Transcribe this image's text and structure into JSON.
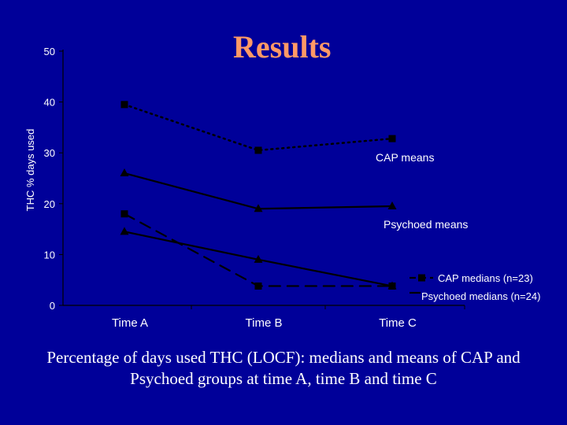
{
  "slide": {
    "title": "Results",
    "caption_line1": "Percentage of days used THC (LOCF): medians and means of CAP and",
    "caption_line2": "Psychoed groups at time A, time B and time C"
  },
  "colors": {
    "background": "#000099",
    "title": "#ff9966",
    "ink": "#000000",
    "text": "#ffffff"
  },
  "chart_data": {
    "type": "line",
    "title": "",
    "xlabel": "",
    "ylabel": "THC % days used",
    "categories": [
      "Time A",
      "Time B",
      "Time C"
    ],
    "ylim": [
      0,
      50
    ],
    "yticks": [
      0,
      10,
      20,
      30,
      40,
      50
    ],
    "grid": false,
    "series": [
      {
        "name": "CAP means",
        "values": [
          39.5,
          30.5,
          32.8
        ],
        "marker": "square",
        "dash": "dotted"
      },
      {
        "name": "Psychoed means",
        "values": [
          26.0,
          19.0,
          19.5
        ],
        "marker": "triangle",
        "dash": "solid"
      },
      {
        "name": "CAP medians (n=23)",
        "values": [
          18.0,
          3.8,
          3.8
        ],
        "marker": "square",
        "dash": "dashed"
      },
      {
        "name": "Psychoed medians (n=24)",
        "values": [
          14.5,
          9.0,
          3.8
        ],
        "marker": "triangle",
        "dash": "solid"
      }
    ]
  }
}
